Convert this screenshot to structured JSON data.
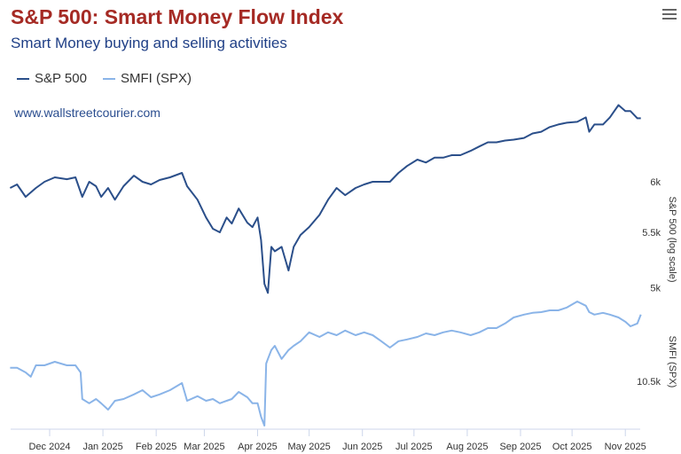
{
  "title": "S&P 500: Smart Money Flow Index",
  "subtitle": "Smart Money buying and selling activities",
  "watermark": "www.wallstreetcourier.com",
  "chart_data": {
    "type": "line",
    "title": "S&P 500: Smart Money Flow Index",
    "x_unit": "days since 2024-12-01",
    "xlim": [
      -23,
      344
    ],
    "x_ticks": [
      {
        "day": 0,
        "label": "Dec 2024"
      },
      {
        "day": 31,
        "label": "Jan 2025"
      },
      {
        "day": 62,
        "label": "Feb 2025"
      },
      {
        "day": 90,
        "label": "Mar 2025"
      },
      {
        "day": 121,
        "label": "Apr 2025"
      },
      {
        "day": 151,
        "label": "May 2025"
      },
      {
        "day": 182,
        "label": "Jun 2025"
      },
      {
        "day": 212,
        "label": "Jul 2025"
      },
      {
        "day": 243,
        "label": "Aug 2025"
      },
      {
        "day": 274,
        "label": "Sep 2025"
      },
      {
        "day": 304,
        "label": "Oct 2025"
      },
      {
        "day": 335,
        "label": "Nov 2025"
      }
    ],
    "legend": [
      {
        "name": "S&P 500",
        "color": "#2b4f8a"
      },
      {
        "name": "SMFI (SPX)",
        "color": "#8ab4e8"
      }
    ],
    "legend_position": "top-left",
    "axes": [
      {
        "label": "S&P 500 (log scale)",
        "scale": "log",
        "ticks": [
          {
            "value": 6000,
            "label": "6k"
          },
          {
            "value": 5500,
            "label": "5.5k"
          },
          {
            "value": 5000,
            "label": "5k"
          }
        ]
      },
      {
        "label": "SMFI (SPX)",
        "scale": "linear",
        "ticks": [
          {
            "value": 10500,
            "label": "10.5k"
          }
        ]
      }
    ],
    "series": [
      {
        "name": "S&P 500",
        "x": [
          -23,
          -19,
          -14,
          -8,
          -3,
          3,
          10,
          15,
          19,
          23,
          27,
          30,
          34,
          38,
          43,
          49,
          54,
          59,
          64,
          70,
          77,
          80,
          86,
          91,
          95,
          99,
          103,
          106,
          110,
          115,
          118,
          121,
          123,
          125,
          127,
          129,
          131,
          135,
          139,
          142,
          146,
          151,
          157,
          162,
          167,
          172,
          178,
          183,
          188,
          193,
          198,
          203,
          208,
          214,
          219,
          224,
          229,
          234,
          239,
          245,
          250,
          255,
          260,
          265,
          270,
          276,
          281,
          286,
          291,
          296,
          301,
          307,
          312,
          314,
          317,
          322,
          326,
          331,
          335,
          338,
          342,
          344
        ],
        "values": [
          5936,
          5973,
          5846,
          5936,
          6000,
          6046,
          6027,
          6046,
          5846,
          6000,
          5954,
          5846,
          5936,
          5818,
          5954,
          6064,
          6000,
          5973,
          6018,
          6046,
          6092,
          5954,
          5818,
          5642,
          5534,
          5500,
          5642,
          5584,
          5730,
          5592,
          5550,
          5642,
          5428,
          5033,
          4955,
          5364,
          5323,
          5364,
          5150,
          5364,
          5475,
          5550,
          5667,
          5818,
          5936,
          5863,
          5936,
          5973,
          6000,
          6000,
          6000,
          6092,
          6165,
          6233,
          6202,
          6254,
          6254,
          6281,
          6281,
          6328,
          6376,
          6422,
          6422,
          6441,
          6451,
          6470,
          6521,
          6540,
          6593,
          6622,
          6642,
          6652,
          6703,
          6540,
          6622,
          6622,
          6703,
          6847,
          6776,
          6776,
          6693,
          6693
        ]
      },
      {
        "name": "SMFI (SPX)",
        "x": [
          -23,
          -19,
          -14,
          -11,
          -8,
          -3,
          3,
          10,
          15,
          18,
          19,
          23,
          27,
          30,
          34,
          38,
          43,
          49,
          54,
          59,
          64,
          70,
          77,
          80,
          86,
          91,
          95,
          99,
          103,
          106,
          110,
          115,
          118,
          121,
          123,
          125,
          126,
          127,
          129,
          131,
          135,
          139,
          142,
          146,
          151,
          157,
          162,
          167,
          172,
          178,
          183,
          188,
          193,
          198,
          203,
          208,
          214,
          219,
          224,
          229,
          234,
          239,
          245,
          250,
          255,
          260,
          265,
          270,
          276,
          281,
          286,
          291,
          296,
          301,
          307,
          312,
          314,
          317,
          322,
          326,
          331,
          335,
          338,
          342,
          344
        ],
        "values": [
          10538,
          10538,
          10525,
          10513,
          10545,
          10545,
          10555,
          10545,
          10545,
          10525,
          10450,
          10438,
          10450,
          10438,
          10420,
          10445,
          10450,
          10463,
          10475,
          10455,
          10463,
          10475,
          10495,
          10445,
          10458,
          10445,
          10450,
          10438,
          10445,
          10450,
          10470,
          10455,
          10438,
          10438,
          10400,
          10375,
          10550,
          10563,
          10588,
          10600,
          10563,
          10588,
          10600,
          10613,
          10638,
          10625,
          10638,
          10630,
          10643,
          10630,
          10638,
          10630,
          10613,
          10595,
          10613,
          10618,
          10625,
          10635,
          10630,
          10638,
          10643,
          10638,
          10630,
          10638,
          10650,
          10650,
          10663,
          10680,
          10688,
          10693,
          10695,
          10700,
          10700,
          10708,
          10725,
          10713,
          10695,
          10688,
          10693,
          10688,
          10680,
          10668,
          10655,
          10663,
          10688
        ]
      }
    ]
  }
}
